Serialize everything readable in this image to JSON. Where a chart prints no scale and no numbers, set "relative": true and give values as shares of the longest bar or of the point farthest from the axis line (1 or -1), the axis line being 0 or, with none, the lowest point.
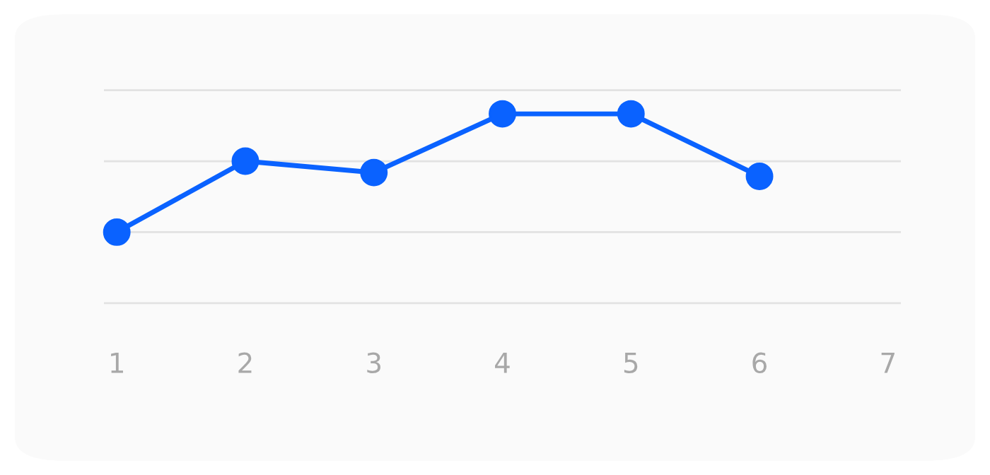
{
  "chart_data": {
    "type": "line",
    "relative": true,
    "categories": [
      "1",
      "2",
      "3",
      "4",
      "5",
      "6",
      "7"
    ],
    "series": [
      {
        "color": "#0a62ff",
        "values": [
          0.375,
          0.75,
          0.69,
          1,
          1,
          0.67,
          null
        ]
      }
    ],
    "ref_lines": [
      {
        "axis": "y",
        "value": 0,
        "color": "#e2e2e2"
      },
      {
        "axis": "y",
        "value": 0.375,
        "color": "#e2e2e2"
      },
      {
        "axis": "y",
        "value": 0.75,
        "color": "#e2e2e2"
      },
      {
        "axis": "y",
        "value": 1.125,
        "color": "#e2e2e2"
      }
    ],
    "marker": "circle",
    "line_style": "solid",
    "tick_labels": "x",
    "legend": false
  }
}
